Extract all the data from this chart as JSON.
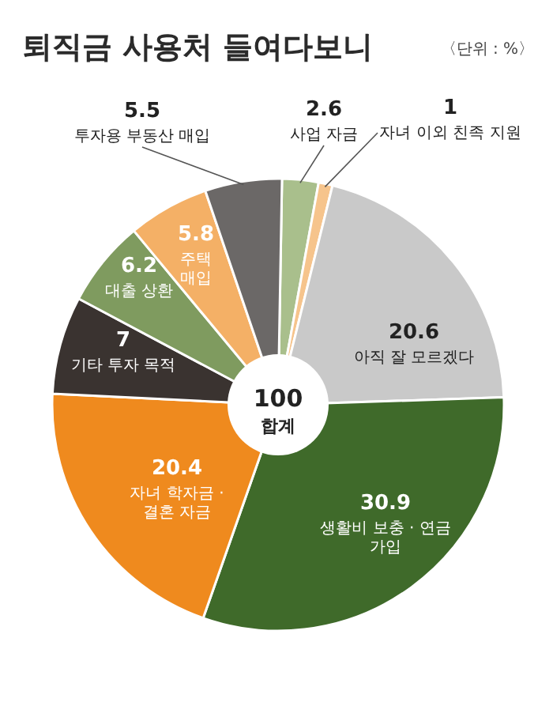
{
  "chart_data": {
    "type": "donut",
    "title": "퇴직금 사용처 들여다보니",
    "subtitle": "〈단위 : %〉",
    "categories": [
      "사업 자금",
      "자녀 이외 친족 지원",
      "아직 잘 모르겠다",
      "생활비 보충 · 연금 가입",
      "자녀 학자금 · 결혼 자금",
      "기타 투자 목적",
      "대출 상환",
      "주택 매입",
      "투자용 부동산 매입"
    ],
    "values": [
      2.6,
      1,
      20.6,
      30.9,
      20.4,
      7,
      6.2,
      5.8,
      5.5
    ],
    "colors": [
      "#a9bf8c",
      "#f6c48c",
      "#c9c9c9",
      "#3f6a2a",
      "#ef8a1e",
      "#3a3330",
      "#7f9b5f",
      "#f4b066",
      "#6b6867"
    ],
    "data_labels": true,
    "annotations": [
      "100",
      "합계"
    ]
  }
}
